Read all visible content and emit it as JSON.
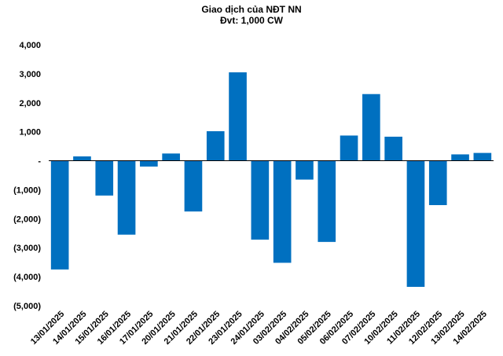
{
  "chart_data": {
    "type": "bar",
    "title": "Giao dịch của NĐT NN",
    "subtitle": "Đvt: 1,000 CW",
    "categories": [
      "13/01/2025",
      "14/01/2025",
      "15/01/2025",
      "16/01/2025",
      "17/01/2025",
      "20/01/2025",
      "21/01/2025",
      "22/01/2025",
      "23/01/2025",
      "24/01/2025",
      "03/02/2025",
      "04/02/2025",
      "05/02/2025",
      "06/02/2025",
      "07/02/2025",
      "10/02/2025",
      "11/02/2025",
      "12/02/2025",
      "13/02/2025",
      "14/02/2025"
    ],
    "series": [
      {
        "values": [
          -3750,
          150,
          -1200,
          -2550,
          -200,
          250,
          -1750,
          1020,
          3050,
          -2720,
          -3520,
          -650,
          -2800,
          870,
          2300,
          830,
          -4350,
          -1530,
          220,
          270
        ]
      }
    ],
    "ylim": [
      -5000,
      4000
    ],
    "yticks": [
      4000,
      3000,
      2000,
      1000,
      0,
      -1000,
      -2000,
      -3000,
      -4000,
      -5000
    ],
    "ytick_labels": [
      "4,000",
      "3,000",
      "2,000",
      "1,000",
      "-",
      "(1,000)",
      "(2,000)",
      "(3,000)",
      "(4,000)",
      "(5,000)"
    ],
    "xlabel": "",
    "ylabel": "",
    "grid": false,
    "legend": "none",
    "colors": {
      "bar": "#0070C0",
      "axis": "#000000"
    }
  }
}
